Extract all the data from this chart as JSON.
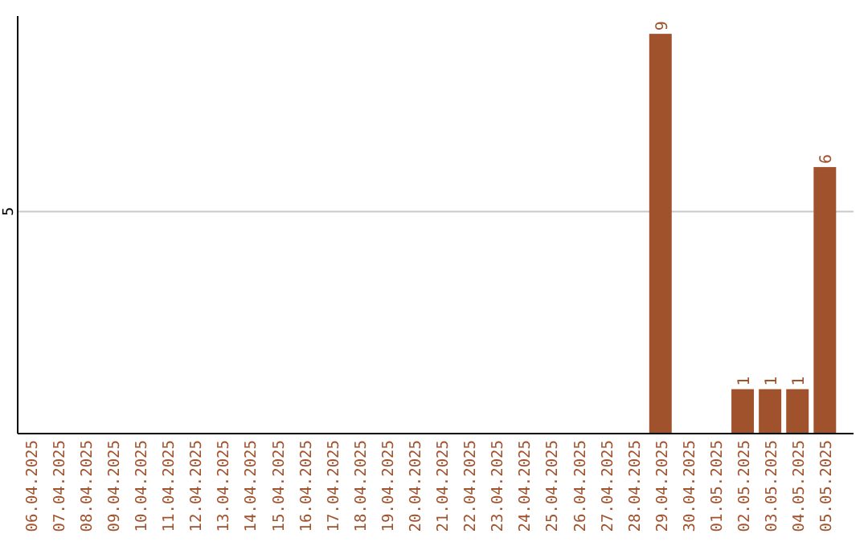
{
  "chart_data": {
    "type": "bar",
    "categories": [
      "06.04.2025",
      "07.04.2025",
      "08.04.2025",
      "09.04.2025",
      "10.04.2025",
      "11.04.2025",
      "12.04.2025",
      "13.04.2025",
      "14.04.2025",
      "15.04.2025",
      "16.04.2025",
      "17.04.2025",
      "18.04.2025",
      "19.04.2025",
      "20.04.2025",
      "21.04.2025",
      "22.04.2025",
      "23.04.2025",
      "24.04.2025",
      "25.04.2025",
      "26.04.2025",
      "27.04.2025",
      "28.04.2025",
      "29.04.2025",
      "30.04.2025",
      "01.05.2025",
      "02.05.2025",
      "03.05.2025",
      "04.05.2025",
      "05.05.2025"
    ],
    "values": [
      null,
      null,
      null,
      null,
      null,
      null,
      null,
      null,
      null,
      null,
      null,
      null,
      null,
      null,
      null,
      null,
      null,
      null,
      null,
      null,
      null,
      null,
      null,
      9,
      null,
      null,
      1,
      1,
      1,
      6
    ],
    "value_labels": [
      null,
      null,
      null,
      null,
      null,
      null,
      null,
      null,
      null,
      null,
      null,
      null,
      null,
      null,
      null,
      null,
      null,
      null,
      null,
      null,
      null,
      null,
      null,
      "9",
      null,
      null,
      "1",
      "1",
      "1",
      "6"
    ],
    "color": "#a0522d",
    "ylim": [
      0,
      9.4
    ],
    "yticks": [
      5
    ],
    "grid": "y"
  }
}
